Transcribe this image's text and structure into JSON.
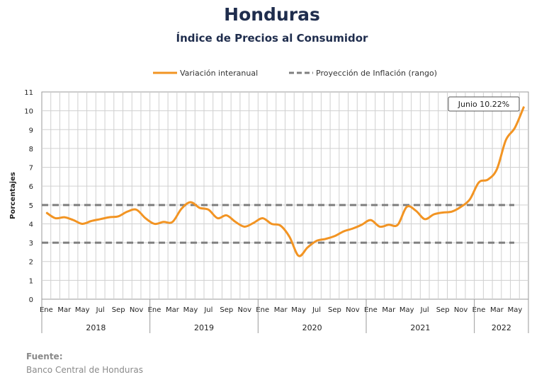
{
  "header": {
    "title": "Honduras",
    "subtitle": "Índice de Precios al Consumidor"
  },
  "source": {
    "label": "Fuente:",
    "value": "Banco Central de Honduras"
  },
  "chart_data": {
    "type": "line",
    "title": "Honduras",
    "subtitle": "Índice de Precios al Consumidor",
    "ylabel": "Porcentajes",
    "xlabel": "",
    "ylim": [
      0,
      11
    ],
    "yticks": [
      0,
      1,
      2,
      3,
      4,
      5,
      6,
      7,
      8,
      9,
      10,
      11
    ],
    "grid": true,
    "legend_position": "top-center",
    "month_tick_labels": [
      "Ene",
      "Mar",
      "May",
      "Jul",
      "Sep",
      "Nov"
    ],
    "years": [
      "2018",
      "2019",
      "2020",
      "2021",
      "2022"
    ],
    "x": [
      "2018-01",
      "2018-02",
      "2018-03",
      "2018-04",
      "2018-05",
      "2018-06",
      "2018-07",
      "2018-08",
      "2018-09",
      "2018-10",
      "2018-11",
      "2018-12",
      "2019-01",
      "2019-02",
      "2019-03",
      "2019-04",
      "2019-05",
      "2019-06",
      "2019-07",
      "2019-08",
      "2019-09",
      "2019-10",
      "2019-11",
      "2019-12",
      "2020-01",
      "2020-02",
      "2020-03",
      "2020-04",
      "2020-05",
      "2020-06",
      "2020-07",
      "2020-08",
      "2020-09",
      "2020-10",
      "2020-11",
      "2020-12",
      "2021-01",
      "2021-02",
      "2021-03",
      "2021-04",
      "2021-05",
      "2021-06",
      "2021-07",
      "2021-08",
      "2021-09",
      "2021-10",
      "2021-11",
      "2021-12",
      "2022-01",
      "2022-02",
      "2022-03",
      "2022-04",
      "2022-05",
      "2022-06"
    ],
    "series": [
      {
        "name": "Variación interanual",
        "color": "#f29423",
        "style": "solid",
        "values": [
          4.6,
          4.3,
          4.35,
          4.2,
          4.0,
          4.15,
          4.25,
          4.35,
          4.4,
          4.65,
          4.75,
          4.3,
          4.0,
          4.1,
          4.1,
          4.8,
          5.15,
          4.85,
          4.75,
          4.3,
          4.45,
          4.1,
          3.85,
          4.05,
          4.3,
          4.0,
          3.9,
          3.3,
          2.3,
          2.75,
          3.1,
          3.2,
          3.35,
          3.6,
          3.75,
          3.95,
          4.2,
          3.85,
          3.95,
          3.95,
          4.9,
          4.7,
          4.25,
          4.5,
          4.6,
          4.65,
          4.9,
          5.3,
          6.2,
          6.35,
          6.9,
          8.45,
          9.1,
          10.22
        ]
      },
      {
        "name": "Proyección de Inflación (rango)",
        "color": "#7f7f7f",
        "style": "dashed",
        "bounds": [
          3.0,
          5.0
        ]
      }
    ],
    "annotations": [
      {
        "text": "Junio 10.22%",
        "x": "2022-06",
        "y": 10.22
      }
    ]
  }
}
